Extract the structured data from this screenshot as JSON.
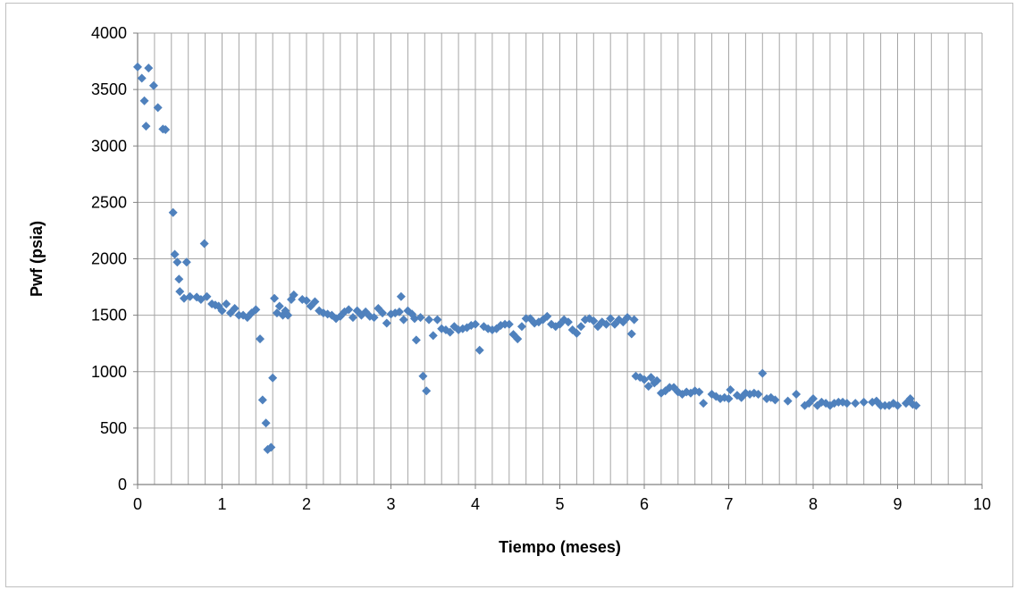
{
  "chart_data": {
    "type": "scatter",
    "title": "",
    "xlabel": "Tiempo (meses)",
    "ylabel": "Pwf (psia)",
    "xlim": [
      0,
      10
    ],
    "ylim": [
      0,
      4000
    ],
    "x_ticks": [
      "0",
      "1",
      "2",
      "3",
      "4",
      "5",
      "6",
      "7",
      "8",
      "9",
      "10"
    ],
    "y_ticks": [
      "0",
      "500",
      "1000",
      "1500",
      "2000",
      "2500",
      "3000",
      "3500",
      "4000"
    ],
    "grid": true,
    "legend": "none",
    "marker": "diamond",
    "color": "#4f81bd",
    "series": [
      {
        "points": [
          [
            0.0,
            3700
          ],
          [
            0.05,
            3600
          ],
          [
            0.08,
            3400
          ],
          [
            0.1,
            3175
          ],
          [
            0.13,
            3690
          ],
          [
            0.19,
            3535
          ],
          [
            0.24,
            3340
          ],
          [
            0.3,
            3150
          ],
          [
            0.33,
            3145
          ],
          [
            0.42,
            2410
          ],
          [
            0.44,
            2040
          ],
          [
            0.47,
            1970
          ],
          [
            0.49,
            1820
          ],
          [
            0.5,
            1710
          ],
          [
            0.55,
            1650
          ],
          [
            0.58,
            1970
          ],
          [
            0.62,
            1665
          ],
          [
            0.7,
            1660
          ],
          [
            0.75,
            1640
          ],
          [
            0.79,
            2135
          ],
          [
            0.82,
            1665
          ],
          [
            0.88,
            1600
          ],
          [
            0.92,
            1590
          ],
          [
            0.96,
            1580
          ],
          [
            1.0,
            1540
          ],
          [
            1.05,
            1600
          ],
          [
            1.1,
            1520
          ],
          [
            1.15,
            1560
          ],
          [
            1.2,
            1500
          ],
          [
            1.25,
            1500
          ],
          [
            1.3,
            1480
          ],
          [
            1.35,
            1520
          ],
          [
            1.4,
            1550
          ],
          [
            1.45,
            1290
          ],
          [
            1.48,
            750
          ],
          [
            1.52,
            545
          ],
          [
            1.54,
            310
          ],
          [
            1.58,
            330
          ],
          [
            1.6,
            945
          ],
          [
            1.62,
            1650
          ],
          [
            1.65,
            1520
          ],
          [
            1.68,
            1580
          ],
          [
            1.72,
            1500
          ],
          [
            1.75,
            1540
          ],
          [
            1.78,
            1500
          ],
          [
            1.82,
            1640
          ],
          [
            1.85,
            1680
          ],
          [
            1.95,
            1640
          ],
          [
            2.0,
            1630
          ],
          [
            2.05,
            1580
          ],
          [
            2.1,
            1620
          ],
          [
            2.15,
            1540
          ],
          [
            2.2,
            1520
          ],
          [
            2.25,
            1510
          ],
          [
            2.3,
            1500
          ],
          [
            2.35,
            1470
          ],
          [
            2.4,
            1490
          ],
          [
            2.45,
            1530
          ],
          [
            2.5,
            1550
          ],
          [
            2.55,
            1480
          ],
          [
            2.6,
            1540
          ],
          [
            2.65,
            1500
          ],
          [
            2.7,
            1530
          ],
          [
            2.75,
            1490
          ],
          [
            2.8,
            1480
          ],
          [
            2.85,
            1560
          ],
          [
            2.9,
            1520
          ],
          [
            2.95,
            1430
          ],
          [
            3.0,
            1510
          ],
          [
            3.05,
            1520
          ],
          [
            3.1,
            1530
          ],
          [
            3.12,
            1665
          ],
          [
            3.15,
            1460
          ],
          [
            3.2,
            1540
          ],
          [
            3.25,
            1510
          ],
          [
            3.28,
            1470
          ],
          [
            3.3,
            1280
          ],
          [
            3.35,
            1480
          ],
          [
            3.38,
            960
          ],
          [
            3.42,
            830
          ],
          [
            3.45,
            1460
          ],
          [
            3.5,
            1320
          ],
          [
            3.55,
            1460
          ],
          [
            3.6,
            1380
          ],
          [
            3.65,
            1370
          ],
          [
            3.7,
            1350
          ],
          [
            3.75,
            1400
          ],
          [
            3.8,
            1370
          ],
          [
            3.85,
            1380
          ],
          [
            3.9,
            1390
          ],
          [
            3.95,
            1410
          ],
          [
            4.0,
            1420
          ],
          [
            4.05,
            1190
          ],
          [
            4.1,
            1400
          ],
          [
            4.15,
            1380
          ],
          [
            4.2,
            1370
          ],
          [
            4.25,
            1380
          ],
          [
            4.3,
            1410
          ],
          [
            4.35,
            1420
          ],
          [
            4.4,
            1420
          ],
          [
            4.45,
            1330
          ],
          [
            4.5,
            1290
          ],
          [
            4.55,
            1400
          ],
          [
            4.6,
            1470
          ],
          [
            4.65,
            1470
          ],
          [
            4.7,
            1430
          ],
          [
            4.75,
            1440
          ],
          [
            4.8,
            1460
          ],
          [
            4.85,
            1490
          ],
          [
            4.9,
            1420
          ],
          [
            4.95,
            1400
          ],
          [
            5.0,
            1420
          ],
          [
            5.05,
            1460
          ],
          [
            5.1,
            1440
          ],
          [
            5.15,
            1370
          ],
          [
            5.2,
            1340
          ],
          [
            5.25,
            1400
          ],
          [
            5.3,
            1460
          ],
          [
            5.35,
            1470
          ],
          [
            5.4,
            1450
          ],
          [
            5.45,
            1400
          ],
          [
            5.5,
            1440
          ],
          [
            5.55,
            1420
          ],
          [
            5.6,
            1470
          ],
          [
            5.65,
            1420
          ],
          [
            5.7,
            1460
          ],
          [
            5.75,
            1440
          ],
          [
            5.8,
            1480
          ],
          [
            5.85,
            1335
          ],
          [
            5.88,
            1460
          ],
          [
            5.9,
            960
          ],
          [
            5.95,
            950
          ],
          [
            6.0,
            930
          ],
          [
            6.05,
            870
          ],
          [
            6.08,
            950
          ],
          [
            6.12,
            900
          ],
          [
            6.15,
            920
          ],
          [
            6.2,
            810
          ],
          [
            6.25,
            830
          ],
          [
            6.3,
            860
          ],
          [
            6.35,
            860
          ],
          [
            6.4,
            820
          ],
          [
            6.45,
            800
          ],
          [
            6.5,
            820
          ],
          [
            6.55,
            810
          ],
          [
            6.6,
            830
          ],
          [
            6.65,
            820
          ],
          [
            6.7,
            720
          ],
          [
            6.8,
            800
          ],
          [
            6.85,
            780
          ],
          [
            6.9,
            760
          ],
          [
            6.95,
            770
          ],
          [
            7.0,
            760
          ],
          [
            7.02,
            840
          ],
          [
            7.1,
            790
          ],
          [
            7.15,
            770
          ],
          [
            7.2,
            810
          ],
          [
            7.25,
            800
          ],
          [
            7.3,
            810
          ],
          [
            7.35,
            800
          ],
          [
            7.4,
            985
          ],
          [
            7.45,
            760
          ],
          [
            7.5,
            770
          ],
          [
            7.55,
            750
          ],
          [
            7.7,
            740
          ],
          [
            7.8,
            800
          ],
          [
            7.9,
            700
          ],
          [
            7.95,
            720
          ],
          [
            8.0,
            760
          ],
          [
            8.05,
            700
          ],
          [
            8.1,
            730
          ],
          [
            8.15,
            720
          ],
          [
            8.2,
            700
          ],
          [
            8.25,
            720
          ],
          [
            8.3,
            730
          ],
          [
            8.35,
            730
          ],
          [
            8.4,
            720
          ],
          [
            8.5,
            720
          ],
          [
            8.6,
            730
          ],
          [
            8.7,
            730
          ],
          [
            8.75,
            740
          ],
          [
            8.8,
            700
          ],
          [
            8.85,
            700
          ],
          [
            8.9,
            700
          ],
          [
            8.95,
            720
          ],
          [
            9.0,
            700
          ],
          [
            9.1,
            720
          ],
          [
            9.15,
            760
          ],
          [
            9.18,
            710
          ],
          [
            9.22,
            700
          ]
        ]
      }
    ]
  }
}
